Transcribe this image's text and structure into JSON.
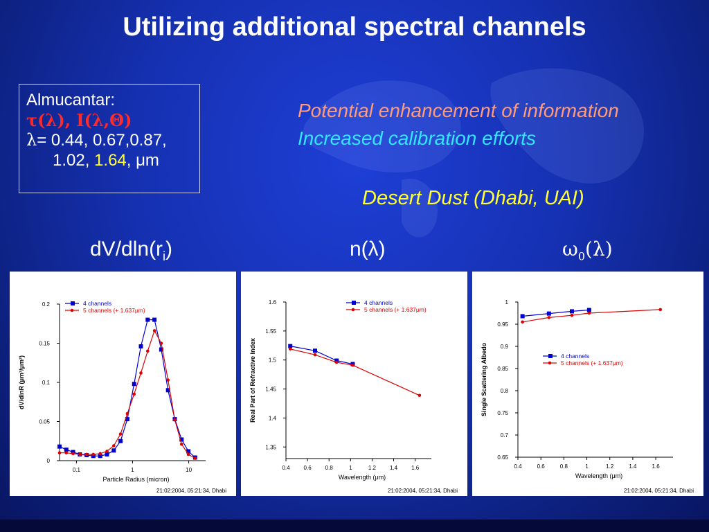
{
  "slide": {
    "title": "Utilizing additional spectral channels",
    "info": {
      "line1": "Almucantar:",
      "tau": "τ(λ), I(λ,Θ)",
      "lambda_sym": "λ",
      "lambda_values": "= 0.44, 0.67,0.87,",
      "lambda_values2": "1.02, ",
      "lambda_highlight": "1.64",
      "lambda_unit": ", μm"
    },
    "enhancement": {
      "line1": "Potential enhancement of information",
      "line2": "Increased calibration efforts"
    },
    "dust_label": "Desert Dust (Dhabi, UAI)",
    "plot_labels": {
      "size": "dV/dln(r",
      "size_sub": "i",
      "size_close": ")",
      "refractive": "n(λ)",
      "albedo_omega": "ω",
      "albedo_sub": "0",
      "albedo_rest": "(λ)"
    },
    "timestamp": "21:02:2004,  05:21:34,  Dhabi"
  },
  "chart_data": [
    {
      "type": "line",
      "ylabel": "dV/dlnR (μm³/μm²)",
      "xlabel": "Particle Radius (micron)",
      "x_scale": "log",
      "xlim": [
        0.05,
        20
      ],
      "ylim": [
        0,
        0.2
      ],
      "x_ticks": [
        0.1,
        1,
        10
      ],
      "x_tick_labels": [
        "0.1",
        "1",
        "10"
      ],
      "y_ticks": [
        0,
        0.05,
        0.1,
        0.15,
        0.2
      ],
      "y_tick_labels": [
        "0",
        "0.05",
        "0.1",
        "0.15",
        "0.2"
      ],
      "legend": "top-left",
      "series": [
        {
          "name": "4 channels",
          "color": "#0000cc",
          "marker": "square",
          "x": [
            0.05,
            0.066,
            0.087,
            0.115,
            0.152,
            0.2,
            0.265,
            0.35,
            0.462,
            0.61,
            0.806,
            1.065,
            1.406,
            1.857,
            2.453,
            3.24,
            4.28,
            5.65,
            7.46,
            9.86,
            13.0
          ],
          "y": [
            0.018,
            0.014,
            0.011,
            0.008,
            0.007,
            0.006,
            0.006,
            0.008,
            0.013,
            0.025,
            0.053,
            0.098,
            0.146,
            0.18,
            0.18,
            0.142,
            0.09,
            0.053,
            0.027,
            0.012,
            0.004
          ]
        },
        {
          "name": "5 channels (+ 1.637μm)",
          "color": "#dd0000",
          "marker": "circle",
          "x": [
            0.05,
            0.066,
            0.087,
            0.115,
            0.152,
            0.2,
            0.265,
            0.35,
            0.462,
            0.61,
            0.806,
            1.065,
            1.406,
            1.857,
            2.453,
            3.24,
            4.28,
            5.65,
            7.46,
            9.86,
            13.0
          ],
          "y": [
            0.01,
            0.01,
            0.009,
            0.008,
            0.008,
            0.008,
            0.009,
            0.012,
            0.019,
            0.034,
            0.06,
            0.085,
            0.112,
            0.14,
            0.166,
            0.15,
            0.103,
            0.052,
            0.021,
            0.008,
            0.003
          ]
        }
      ]
    },
    {
      "type": "line",
      "ylabel": "Real Part of Refractive Index",
      "xlabel": "Wavelength (μm)",
      "xlim": [
        0.4,
        1.75
      ],
      "ylim": [
        1.33,
        1.6
      ],
      "x_ticks": [
        0.4,
        0.6,
        0.8,
        1.0,
        1.2,
        1.4,
        1.6
      ],
      "x_tick_labels": [
        "0.4",
        "0.6",
        "0.8",
        "1",
        "1.2",
        "1.4",
        "1.6"
      ],
      "y_ticks": [
        1.35,
        1.4,
        1.45,
        1.5,
        1.55,
        1.6
      ],
      "y_tick_labels": [
        "1.35",
        "1.4",
        "1.45",
        "1.5",
        "1.55",
        "1.6"
      ],
      "legend": "top-right",
      "series": [
        {
          "name": "4 channels",
          "color": "#0000cc",
          "marker": "square",
          "x": [
            0.44,
            0.67,
            0.87,
            1.02
          ],
          "y": [
            1.524,
            1.516,
            1.499,
            1.493
          ]
        },
        {
          "name": "5 channels (+ 1.637μm)",
          "color": "#dd0000",
          "marker": "circle",
          "x": [
            0.44,
            0.67,
            0.87,
            1.02,
            1.64
          ],
          "y": [
            1.519,
            1.509,
            1.496,
            1.491,
            1.439
          ]
        }
      ]
    },
    {
      "type": "line",
      "ylabel": "Single Scattering Albedo",
      "xlabel": "Wavelength (μm)",
      "xlim": [
        0.4,
        1.75
      ],
      "ylim": [
        0.65,
        1.0
      ],
      "x_ticks": [
        0.4,
        0.6,
        0.8,
        1.0,
        1.2,
        1.4,
        1.6
      ],
      "x_tick_labels": [
        "0.4",
        "0.6",
        "0.8",
        "1",
        "1.2",
        "1.4",
        "1.6"
      ],
      "y_ticks": [
        0.65,
        0.7,
        0.75,
        0.8,
        0.85,
        0.9,
        0.95,
        1.0
      ],
      "y_tick_labels": [
        "0.65",
        "0.7",
        "0.75",
        "0.8",
        "0.85",
        "0.9",
        "0.95",
        "1"
      ],
      "legend": "center",
      "series": [
        {
          "name": "4 channels",
          "color": "#0000cc",
          "marker": "square",
          "x": [
            0.44,
            0.67,
            0.87,
            1.02
          ],
          "y": [
            0.968,
            0.974,
            0.979,
            0.982
          ]
        },
        {
          "name": "5 channels (+ 1.637μm)",
          "color": "#dd0000",
          "marker": "circle",
          "x": [
            0.44,
            0.67,
            0.87,
            1.02,
            1.64
          ],
          "y": [
            0.955,
            0.965,
            0.97,
            0.975,
            0.983
          ]
        }
      ]
    }
  ]
}
